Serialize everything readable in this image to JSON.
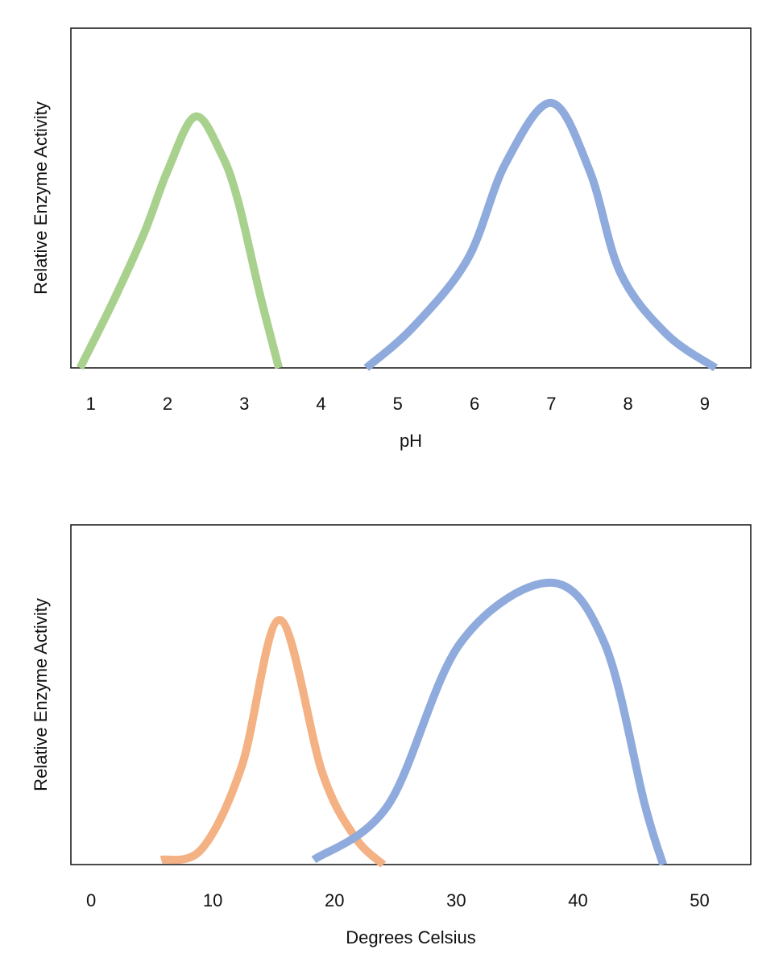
{
  "chart_data": [
    {
      "type": "line",
      "x_label": "pH",
      "y_label": "Relative Enzyme Activity",
      "xlim": [
        0.74,
        9.6
      ],
      "ylim": [
        0,
        100
      ],
      "xticks": [
        1,
        2,
        3,
        4,
        5,
        6,
        7,
        8,
        9
      ],
      "series": [
        {
          "color": "#a9d18e",
          "x": [
            0.86,
            1.3,
            1.7,
            2.0,
            2.36,
            2.7,
            2.92,
            3.2,
            3.45
          ],
          "values": [
            0,
            20,
            40,
            58,
            74,
            63,
            49,
            22,
            0
          ]
        },
        {
          "color": "#8faadc",
          "x": [
            4.59,
            5.2,
            5.91,
            6.4,
            7.0,
            7.5,
            7.9,
            8.5,
            9.14
          ],
          "values": [
            0,
            12,
            32,
            60,
            78,
            58,
            28,
            10,
            0
          ]
        }
      ]
    },
    {
      "type": "line",
      "x_label": "Degrees Celsius",
      "y_label": "Relative Enzyme Activity",
      "xlim": [
        -1.66,
        54.2
      ],
      "ylim": [
        0,
        100
      ],
      "xticks": [
        0,
        10,
        20,
        30,
        40,
        50
      ],
      "series": [
        {
          "color": "#f4b183",
          "x": [
            5.76,
            9.07,
            12.38,
            15.5,
            19.0,
            21.7,
            24.0
          ],
          "values": [
            1.4,
            4.5,
            29,
            72,
            27,
            8,
            0
          ]
        },
        {
          "color": "#8faadc",
          "x": [
            18.3,
            24.4,
            30.3,
            37.7,
            42.2,
            45.5,
            47.0
          ],
          "values": [
            1.4,
            17.5,
            65,
            83,
            65,
            17.5,
            0
          ]
        }
      ]
    }
  ]
}
